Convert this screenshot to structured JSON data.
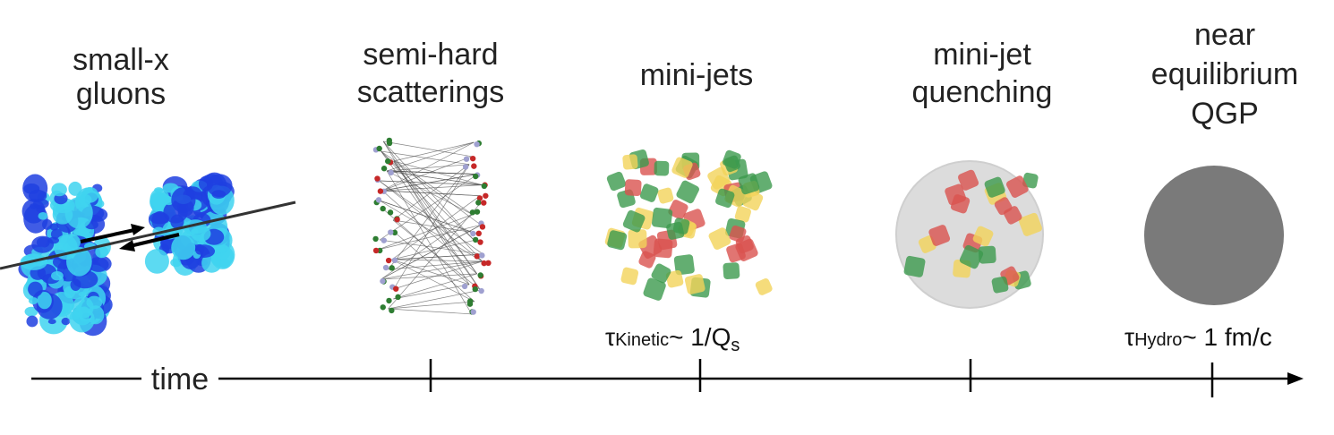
{
  "stages": [
    {
      "lines": [
        "small-x",
        "gluons"
      ]
    },
    {
      "lines": [
        "semi-hard",
        "scatterings"
      ]
    },
    {
      "lines": [
        "mini-jets"
      ]
    },
    {
      "lines": [
        "mini-jet",
        "quenching"
      ]
    },
    {
      "lines": [
        "near",
        "equilibrium",
        "QGP"
      ]
    }
  ],
  "axis": {
    "label": "time"
  },
  "timescales": [
    {
      "symbol": "τ",
      "subscript": "Kinetic",
      "relation": "~ 1/Q",
      "relation_subscript": "s"
    },
    {
      "symbol": "τ",
      "subscript": "Hydro",
      "relation": "~ 1 fm/c"
    }
  ]
}
